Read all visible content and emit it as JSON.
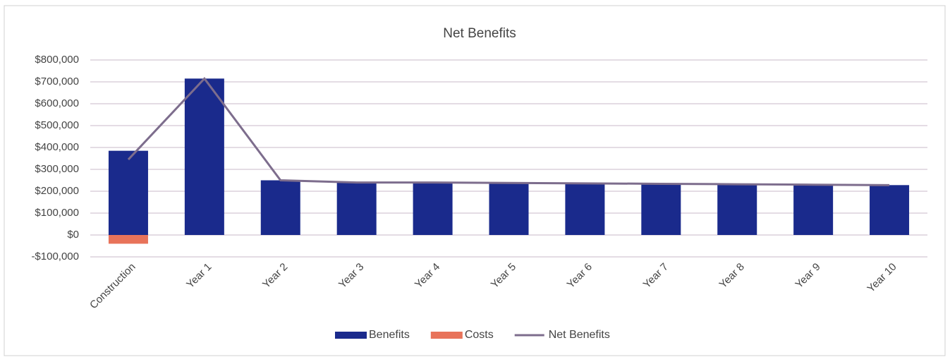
{
  "chart_data": {
    "type": "bar",
    "title": "Net Benefits",
    "categories": [
      "Construction",
      "Year 1",
      "Year 2",
      "Year 3",
      "Year 4",
      "Year 5",
      "Year 6",
      "Year 7",
      "Year 8",
      "Year 9",
      "Year 10"
    ],
    "series": [
      {
        "name": "Benefits",
        "type": "bar",
        "color": "#1a2a8c",
        "values": [
          385000,
          715000,
          250000,
          240000,
          240000,
          238000,
          236000,
          234000,
          232000,
          230000,
          228000
        ]
      },
      {
        "name": "Costs",
        "type": "bar",
        "color": "#e8735a",
        "values": [
          -40000,
          0,
          0,
          0,
          0,
          0,
          0,
          0,
          0,
          0,
          0
        ]
      },
      {
        "name": "Net Benefits",
        "type": "line",
        "color": "#7d6d8d",
        "values": [
          345000,
          715000,
          250000,
          240000,
          240000,
          238000,
          236000,
          234000,
          232000,
          230000,
          228000
        ]
      }
    ],
    "ylim": [
      -100000,
      800000
    ],
    "yticks": [
      {
        "value": -100000,
        "label": "-$100,000"
      },
      {
        "value": 0,
        "label": "$0"
      },
      {
        "value": 100000,
        "label": "$100,000"
      },
      {
        "value": 200000,
        "label": "$200,000"
      },
      {
        "value": 300000,
        "label": "$300,000"
      },
      {
        "value": 400000,
        "label": "$400,000"
      },
      {
        "value": 500000,
        "label": "$500,000"
      },
      {
        "value": 600000,
        "label": "$600,000"
      },
      {
        "value": 700000,
        "label": "$700,000"
      },
      {
        "value": 800000,
        "label": "$800,000"
      }
    ],
    "grid": true,
    "legend": "bottom"
  }
}
